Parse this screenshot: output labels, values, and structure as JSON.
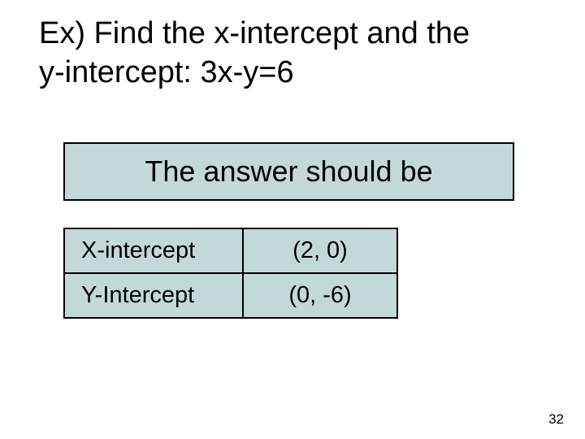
{
  "colors": {
    "background": "#ffffff",
    "text": "#000000",
    "cell_fill": "#c3d9d9",
    "border": "#000000"
  },
  "heading": {
    "line1": "Ex) Find the x-intercept and the",
    "line2": "y-intercept: 3x-y=6",
    "fontsize": 38
  },
  "answer_banner": {
    "text": "The answer should be",
    "background_color": "#c3d9d9",
    "fontsize": 36
  },
  "intercepts": {
    "columns": [
      "label",
      "value"
    ],
    "rows": [
      {
        "label": "X-intercept",
        "value": "(2, 0)"
      },
      {
        "label": "Y-Intercept",
        "value": "(0, -6)"
      }
    ],
    "cell_background": "#c3d9d9",
    "fontsize": 29
  },
  "page_number": "32"
}
